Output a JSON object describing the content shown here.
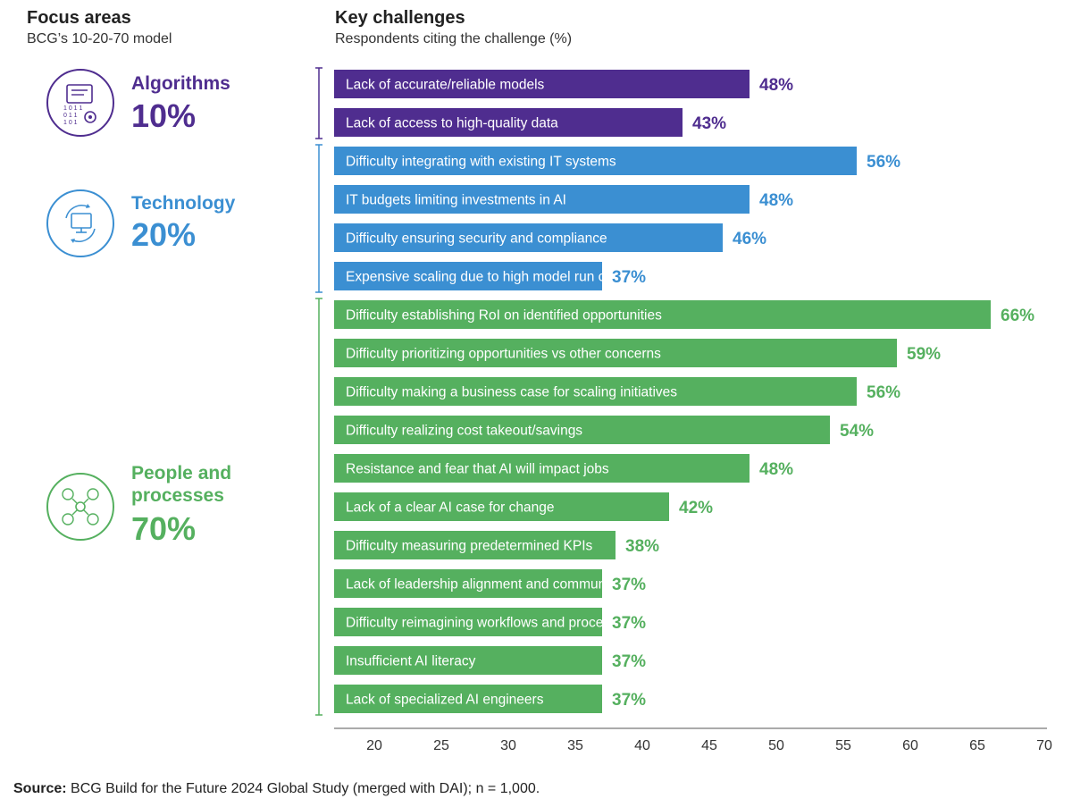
{
  "left_header": {
    "title": "Focus areas",
    "subtitle": "BCG’s 10-20-70 model"
  },
  "chart_header": {
    "title": "Key challenges",
    "subtitle": "Respondents citing the challenge (%)"
  },
  "colors": {
    "algorithms": "#4f2d8f",
    "technology": "#3b8fd2",
    "people": "#55b05f",
    "axis": "#555555"
  },
  "focus_areas": [
    {
      "name": "Algorithms",
      "percent": "10%",
      "icon": "code-gear-icon"
    },
    {
      "name": "Technology",
      "percent": "20%",
      "icon": "monitor-cycle-icon"
    },
    {
      "name_line1": "People and",
      "name_line2": "processes",
      "percent": "70%",
      "icon": "people-network-icon"
    }
  ],
  "chart_data": {
    "type": "bar",
    "orientation": "horizontal",
    "title": "Key challenges",
    "subtitle": "Respondents citing the challenge (%)",
    "xlim": [
      17,
      70
    ],
    "xticks": [
      20,
      25,
      30,
      35,
      40,
      45,
      50,
      55,
      60,
      65,
      70
    ],
    "grid": false,
    "bars": [
      {
        "label": "Lack of accurate/reliable models",
        "value": 48,
        "value_label": "48%",
        "group": "algorithms"
      },
      {
        "label": "Lack of access to high-quality data",
        "value": 43,
        "value_label": "43%",
        "group": "algorithms"
      },
      {
        "label": "Difficulty integrating with existing IT systems",
        "value": 56,
        "value_label": "56%",
        "group": "technology"
      },
      {
        "label": "IT budgets limiting investments in AI",
        "value": 48,
        "value_label": "48%",
        "group": "technology"
      },
      {
        "label": "Difficulty ensuring security and compliance",
        "value": 46,
        "value_label": "46%",
        "group": "technology"
      },
      {
        "label": "Expensive scaling due to high model run costs",
        "value": 37,
        "value_label": "37%",
        "group": "technology"
      },
      {
        "label": "Difficulty establishing RoI on identified opportunities",
        "value": 66,
        "value_label": "66%",
        "group": "people"
      },
      {
        "label": "Difficulty prioritizing opportunities vs other concerns",
        "value": 59,
        "value_label": "59%",
        "group": "people"
      },
      {
        "label": "Difficulty making a business case for scaling initiatives",
        "value": 56,
        "value_label": "56%",
        "group": "people"
      },
      {
        "label": "Difficulty realizing cost takeout/savings",
        "value": 54,
        "value_label": "54%",
        "group": "people"
      },
      {
        "label": "Resistance and fear that AI will impact jobs",
        "value": 48,
        "value_label": "48%",
        "group": "people"
      },
      {
        "label": "Lack of a clear AI case for change",
        "value": 42,
        "value_label": "42%",
        "group": "people"
      },
      {
        "label": "Difficulty measuring predetermined KPIs",
        "value": 38,
        "value_label": "38%",
        "group": "people"
      },
      {
        "label": "Lack of leadership alignment and communications",
        "value": 37,
        "value_label": "37%",
        "group": "people"
      },
      {
        "label": "Difficulty reimagining workflows and processes",
        "value": 37,
        "value_label": "37%",
        "group": "people"
      },
      {
        "label": "Insufficient AI literacy",
        "value": 37,
        "value_label": "37%",
        "group": "people"
      },
      {
        "label": "Lack of specialized AI engineers",
        "value": 37,
        "value_label": "37%",
        "group": "people"
      }
    ]
  },
  "source": {
    "label": "Source:",
    "text": "BCG Build for the Future 2024 Global Study (merged with DAI); n = 1,000."
  }
}
